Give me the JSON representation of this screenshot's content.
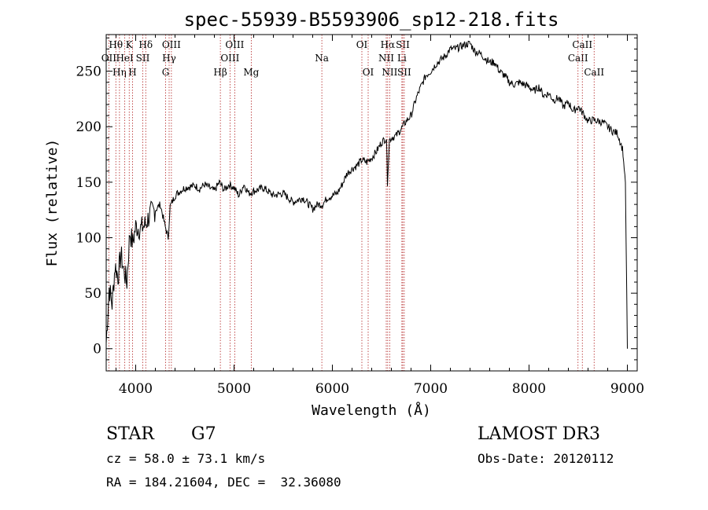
{
  "chart_data": {
    "type": "line",
    "title": "spec-55939-B5593906_sp12-218.fits",
    "xlabel": "Wavelength (Å)",
    "ylabel": "Flux (relative)",
    "xlim": [
      3700,
      9100
    ],
    "ylim": [
      -20,
      283
    ],
    "x_ticks": [
      4000,
      5000,
      6000,
      7000,
      8000,
      9000
    ],
    "y_ticks": [
      0,
      50,
      100,
      150,
      200,
      250
    ],
    "series": [
      {
        "name": "spectrum",
        "x": [
          3700,
          3730,
          3760,
          3790,
          3820,
          3850,
          3880,
          3910,
          3940,
          3970,
          4000,
          4050,
          4100,
          4150,
          4200,
          4250,
          4300,
          4330,
          4350,
          4400,
          4450,
          4500,
          4550,
          4600,
          4650,
          4700,
          4750,
          4800,
          4850,
          4900,
          4950,
          5000,
          5050,
          5100,
          5150,
          5200,
          5300,
          5400,
          5500,
          5600,
          5700,
          5800,
          5850,
          5900,
          5950,
          6000,
          6050,
          6100,
          6150,
          6200,
          6250,
          6300,
          6350,
          6400,
          6450,
          6500,
          6550,
          6560,
          6580,
          6600,
          6650,
          6700,
          6750,
          6800,
          6850,
          6900,
          6950,
          7000,
          7050,
          7100,
          7150,
          7200,
          7250,
          7300,
          7350,
          7400,
          7450,
          7500,
          7550,
          7600,
          7650,
          7700,
          7750,
          7800,
          7850,
          7900,
          7950,
          8000,
          8050,
          8100,
          8150,
          8200,
          8250,
          8300,
          8350,
          8400,
          8450,
          8500,
          8550,
          8600,
          8650,
          8700,
          8750,
          8800,
          8850,
          8900,
          8950,
          8980,
          9000
        ],
        "y": [
          5,
          55,
          40,
          75,
          65,
          85,
          70,
          60,
          105,
          95,
          110,
          108,
          112,
          122,
          125,
          130,
          110,
          100,
          128,
          138,
          142,
          145,
          146,
          147,
          144,
          148,
          145,
          142,
          150,
          143,
          148,
          145,
          138,
          148,
          140,
          142,
          145,
          138,
          140,
          132,
          136,
          126,
          130,
          130,
          136,
          138,
          140,
          148,
          158,
          162,
          165,
          170,
          168,
          172,
          178,
          186,
          190,
          150,
          188,
          190,
          192,
          198,
          205,
          210,
          225,
          236,
          246,
          250,
          256,
          260,
          264,
          270,
          270,
          272,
          274,
          275,
          268,
          266,
          262,
          258,
          258,
          250,
          246,
          240,
          238,
          240,
          238,
          236,
          232,
          236,
          228,
          230,
          224,
          226,
          218,
          222,
          214,
          218,
          212,
          205,
          206,
          205,
          204,
          200,
          196,
          194,
          180,
          150,
          0
        ]
      }
    ],
    "line_markers": [
      {
        "name": "OII",
        "wave": 3727,
        "row": 2
      },
      {
        "name": "Hθ",
        "wave": 3798,
        "row": 1
      },
      {
        "name": "Hη",
        "wave": 3835,
        "row": 3
      },
      {
        "name": "HeI",
        "wave": 3889,
        "row": 2
      },
      {
        "name": "K",
        "wave": 3934,
        "row": 1
      },
      {
        "name": "H",
        "wave": 3968,
        "row": 3
      },
      {
        "name": "SII",
        "wave": 4072,
        "row": 2
      },
      {
        "name": "Hδ",
        "wave": 4102,
        "row": 1
      },
      {
        "name": "G",
        "wave": 4304,
        "row": 3
      },
      {
        "name": "Hγ",
        "wave": 4340,
        "row": 2
      },
      {
        "name": "OIII",
        "wave": 4363,
        "row": 1
      },
      {
        "name": "Hβ",
        "wave": 4861,
        "row": 3
      },
      {
        "name": "OIII",
        "wave": 4959,
        "row": 2
      },
      {
        "name": "OIII",
        "wave": 5007,
        "row": 1
      },
      {
        "name": "Mg",
        "wave": 5175,
        "row": 3
      },
      {
        "name": "Na",
        "wave": 5893,
        "row": 2
      },
      {
        "name": "OI",
        "wave": 6300,
        "row": 1
      },
      {
        "name": "OI",
        "wave": 6364,
        "row": 3
      },
      {
        "name": "NII",
        "wave": 6548,
        "row": 2
      },
      {
        "name": "Hα",
        "wave": 6563,
        "row": 1
      },
      {
        "name": "NII",
        "wave": 6583,
        "row": 3
      },
      {
        "name": "Li",
        "wave": 6707,
        "row": 2
      },
      {
        "name": "SII",
        "wave": 6716,
        "row": 1
      },
      {
        "name": "SII",
        "wave": 6731,
        "row": 3
      },
      {
        "name": "CaII",
        "wave": 8498,
        "row": 2
      },
      {
        "name": "CaII",
        "wave": 8542,
        "row": 1
      },
      {
        "name": "CaII",
        "wave": 8662,
        "row": 3
      }
    ]
  },
  "info": {
    "object_class": "STAR",
    "subclass": "G7",
    "survey": "LAMOST DR3",
    "redshift": "cz = 58.0 ± 73.1 km/s",
    "obs_date": "Obs-Date: 20120112",
    "coords": "RA = 184.21604, DEC =  32.36080"
  },
  "colors": {
    "spectrum": "#000000",
    "markers": "#b22222"
  }
}
